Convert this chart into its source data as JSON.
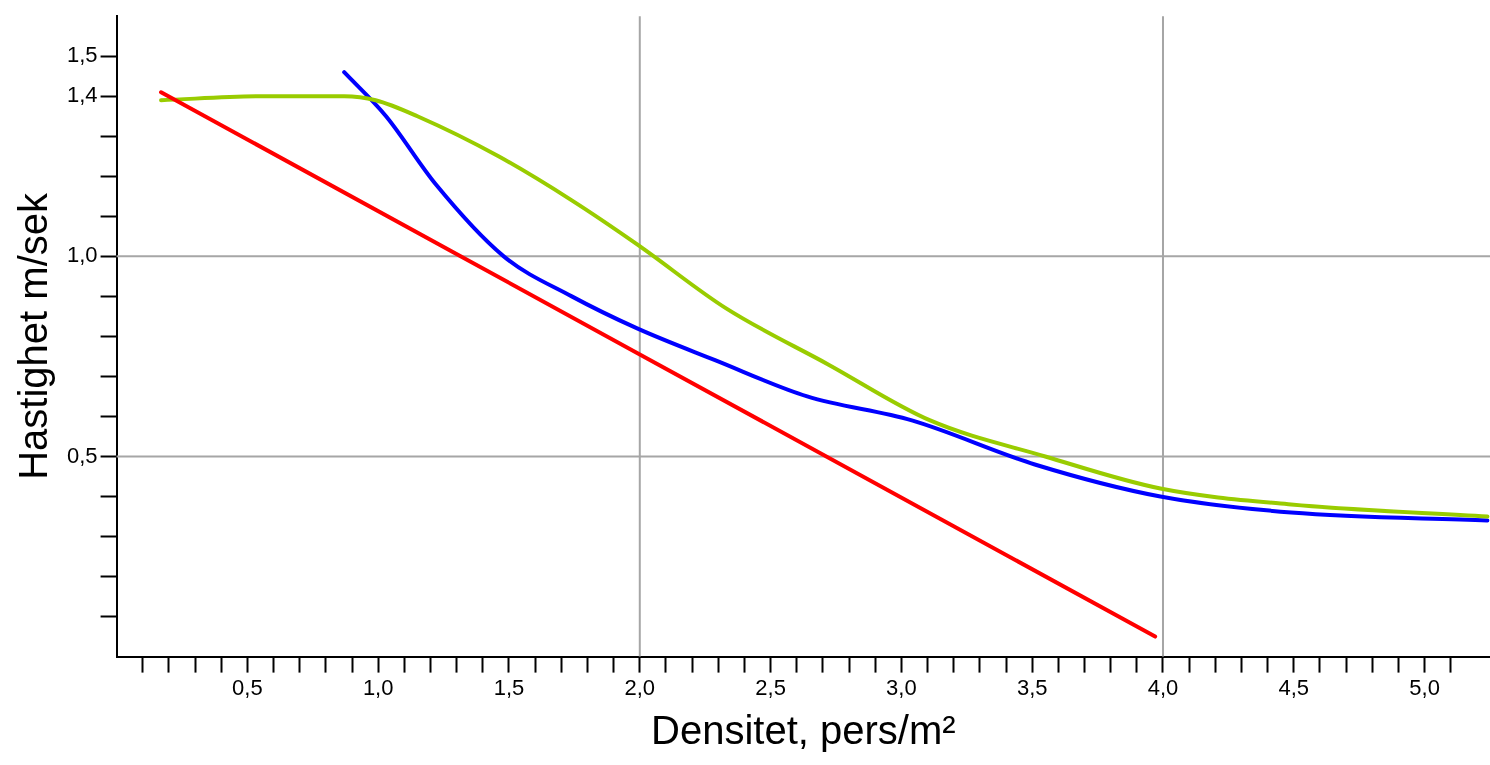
{
  "chart_data": {
    "type": "line",
    "xlabel": "Densitet, pers/m²",
    "ylabel": "Hastighet m/sek",
    "marker": "none",
    "line_style": "solid",
    "legend": false,
    "xlim": [
      0,
      5.25
    ],
    "ylim": [
      0,
      1.6
    ],
    "xticks": [
      {
        "value": 0.1,
        "label": null
      },
      {
        "value": 0.2,
        "label": null
      },
      {
        "value": 0.3,
        "label": null
      },
      {
        "value": 0.4,
        "label": null
      },
      {
        "value": 0.5,
        "label": "0,5"
      },
      {
        "value": 0.6,
        "label": null
      },
      {
        "value": 0.7,
        "label": null
      },
      {
        "value": 0.8,
        "label": null
      },
      {
        "value": 0.9,
        "label": null
      },
      {
        "value": 1.0,
        "label": "1,0"
      },
      {
        "value": 1.1,
        "label": null
      },
      {
        "value": 1.2,
        "label": null
      },
      {
        "value": 1.3,
        "label": null
      },
      {
        "value": 1.4,
        "label": null
      },
      {
        "value": 1.5,
        "label": "1,5"
      },
      {
        "value": 1.6,
        "label": null
      },
      {
        "value": 1.7,
        "label": null
      },
      {
        "value": 1.8,
        "label": null
      },
      {
        "value": 1.9,
        "label": null
      },
      {
        "value": 2.0,
        "label": "2,0"
      },
      {
        "value": 2.1,
        "label": null
      },
      {
        "value": 2.2,
        "label": null
      },
      {
        "value": 2.3,
        "label": null
      },
      {
        "value": 2.4,
        "label": null
      },
      {
        "value": 2.5,
        "label": "2,5"
      },
      {
        "value": 2.6,
        "label": null
      },
      {
        "value": 2.7,
        "label": null
      },
      {
        "value": 2.8,
        "label": null
      },
      {
        "value": 2.9,
        "label": null
      },
      {
        "value": 3.0,
        "label": "3,0"
      },
      {
        "value": 3.1,
        "label": null
      },
      {
        "value": 3.2,
        "label": null
      },
      {
        "value": 3.3,
        "label": null
      },
      {
        "value": 3.4,
        "label": null
      },
      {
        "value": 3.5,
        "label": "3,5"
      },
      {
        "value": 3.6,
        "label": null
      },
      {
        "value": 3.7,
        "label": null
      },
      {
        "value": 3.8,
        "label": null
      },
      {
        "value": 3.9,
        "label": null
      },
      {
        "value": 4.0,
        "label": "4,0"
      },
      {
        "value": 4.1,
        "label": null
      },
      {
        "value": 4.2,
        "label": null
      },
      {
        "value": 4.3,
        "label": null
      },
      {
        "value": 4.4,
        "label": null
      },
      {
        "value": 4.5,
        "label": "4,5"
      },
      {
        "value": 4.6,
        "label": null
      },
      {
        "value": 4.7,
        "label": null
      },
      {
        "value": 4.8,
        "label": null
      },
      {
        "value": 4.9,
        "label": null
      },
      {
        "value": 5.0,
        "label": "5,0"
      },
      {
        "value": 5.1,
        "label": null
      }
    ],
    "yticks": [
      {
        "value": 0.1,
        "label": null
      },
      {
        "value": 0.2,
        "label": null
      },
      {
        "value": 0.3,
        "label": null
      },
      {
        "value": 0.4,
        "label": null
      },
      {
        "value": 0.5,
        "label": "0,5"
      },
      {
        "value": 0.6,
        "label": null
      },
      {
        "value": 0.7,
        "label": null
      },
      {
        "value": 0.8,
        "label": null
      },
      {
        "value": 0.9,
        "label": null
      },
      {
        "value": 1.0,
        "label": "1,0"
      },
      {
        "value": 1.1,
        "label": null
      },
      {
        "value": 1.2,
        "label": null
      },
      {
        "value": 1.3,
        "label": null
      },
      {
        "value": 1.4,
        "label": "1,4"
      },
      {
        "value": 1.5,
        "label": "1,5"
      }
    ],
    "ref_lines": [
      {
        "axis": "x",
        "value": 2.0,
        "color": "#a6a6a6"
      },
      {
        "axis": "x",
        "value": 4.0,
        "color": "#a6a6a6"
      },
      {
        "axis": "y",
        "value": 0.5,
        "color": "#a6a6a6"
      },
      {
        "axis": "y",
        "value": 1.0,
        "color": "#a6a6a6"
      }
    ],
    "series": [
      {
        "color": "#ff0000",
        "x": [
          0.17,
          3.97
        ],
        "values": [
          1.41,
          0.05
        ]
      },
      {
        "color": "#99cc00",
        "x": [
          0.17,
          0.56,
          0.87,
          0.99,
          1.15,
          1.46,
          1.74,
          1.99,
          2.33,
          2.72,
          3.11,
          3.55,
          3.99,
          4.49,
          5.24
        ],
        "values": [
          1.39,
          1.4,
          1.4,
          1.39,
          1.35,
          1.25,
          1.14,
          1.03,
          0.87,
          0.73,
          0.59,
          0.5,
          0.42,
          0.38,
          0.35
        ]
      },
      {
        "color": "#0000ff",
        "x": [
          0.87,
          1.03,
          1.22,
          1.48,
          1.74,
          1.99,
          2.29,
          2.64,
          3.04,
          3.51,
          3.99,
          4.49,
          5.24
        ],
        "values": [
          1.46,
          1.35,
          1.18,
          1.0,
          0.9,
          0.82,
          0.74,
          0.65,
          0.59,
          0.48,
          0.4,
          0.36,
          0.34
        ]
      }
    ]
  }
}
